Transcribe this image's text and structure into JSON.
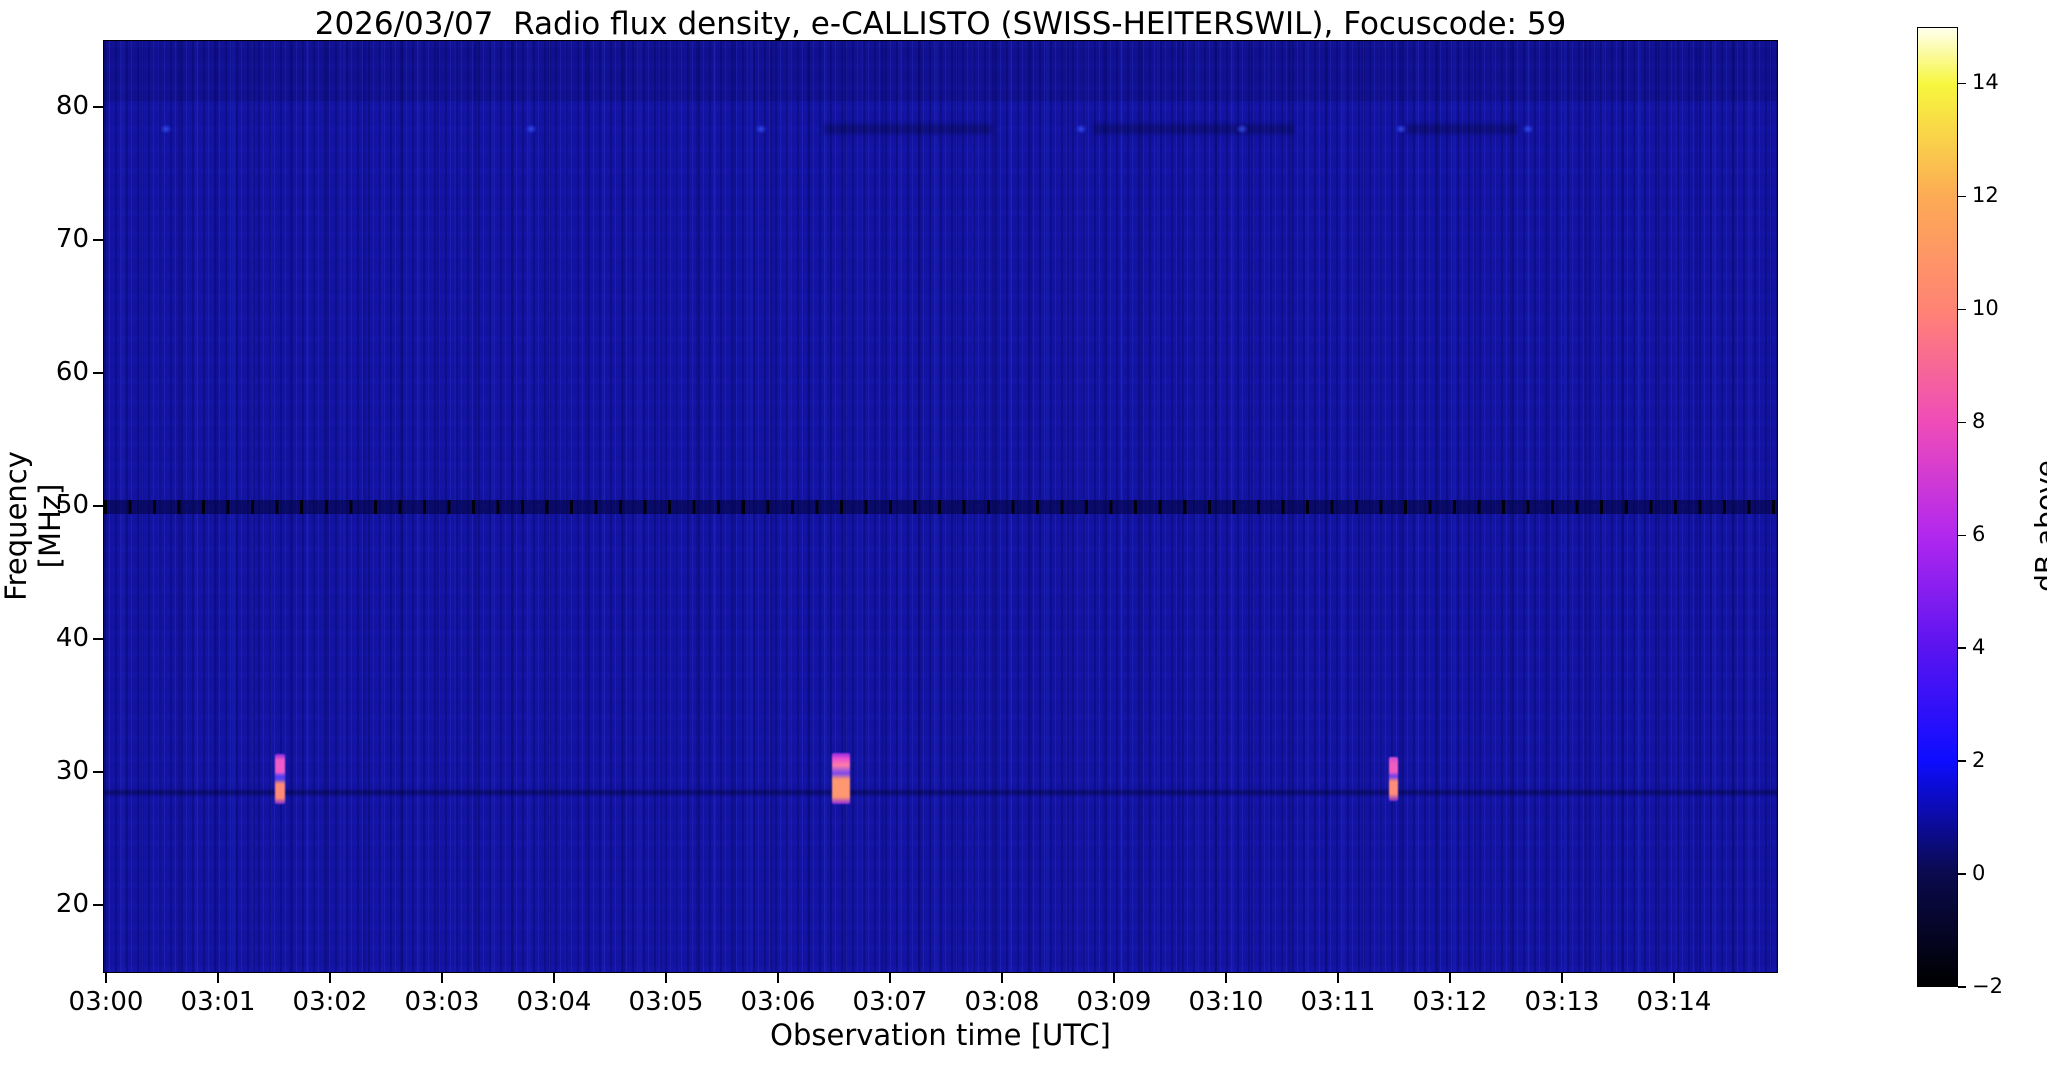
{
  "figure": {
    "title": "2026/03/07  Radio flux density, e-CALLISTO (SWISS-HEITERSWIL), Focuscode: 59",
    "xlabel": "Observation time [UTC]",
    "ylabel": "Frequency [MHz]",
    "colorbar_label": "dB above background"
  },
  "chart_data": {
    "type": "heatmap",
    "title": "2026/03/07  Radio flux density, e-CALLISTO (SWISS-HEITERSWIL), Focuscode: 59",
    "xlabel": "Observation time [UTC]",
    "ylabel": "Frequency [MHz]",
    "x_tick_labels": [
      "03:00",
      "03:01",
      "03:02",
      "03:03",
      "03:04",
      "03:05",
      "03:06",
      "03:07",
      "03:08",
      "03:09",
      "03:10",
      "03:11",
      "03:12",
      "03:13",
      "03:14"
    ],
    "x_range_utc": [
      "03:00",
      "03:15"
    ],
    "y_tick_labels": [
      "80",
      "70",
      "60",
      "50",
      "40",
      "30",
      "20"
    ],
    "y_ticks_mhz": [
      80,
      70,
      60,
      50,
      40,
      30,
      20
    ],
    "ylim_mhz": [
      15,
      85
    ],
    "y_axis_inverted": true,
    "grid": false,
    "background_db": 0.5,
    "background_color": "#1313a2",
    "colorbar": {
      "label": "dB above background",
      "tick_labels": [
        "14",
        "12",
        "10",
        "8",
        "6",
        "4",
        "2",
        "0",
        "−2"
      ],
      "tick_values": [
        14,
        12,
        10,
        8,
        6,
        4,
        2,
        0,
        -2
      ],
      "range_db": [
        -2,
        15
      ],
      "colormap": "gnuplot2-like (black-blue-violet-magenta-salmon-orange-yellow-white)",
      "stops": [
        {
          "v": -2,
          "c": "#000000"
        },
        {
          "v": 0,
          "c": "#0a0a4e"
        },
        {
          "v": 2,
          "c": "#0d0dff"
        },
        {
          "v": 4,
          "c": "#5a14f0"
        },
        {
          "v": 6,
          "c": "#b228ee"
        },
        {
          "v": 8,
          "c": "#ef4cb8"
        },
        {
          "v": 10,
          "c": "#ff8374"
        },
        {
          "v": 12,
          "c": "#fcab55"
        },
        {
          "v": 14,
          "c": "#f7f63e"
        },
        {
          "v": 15,
          "c": "#ffffee"
        }
      ]
    },
    "features": {
      "bursts": [
        {
          "t_start_min": 1.5,
          "t_end_min": 1.59,
          "t_center_utc": "03:01:33",
          "f_hi_mhz": 31.4,
          "f_lo_mhz": 27.7,
          "peak_db": 10,
          "stops": [
            [
              "#8a2ae0",
              0
            ],
            [
              "#f15cc8",
              12
            ],
            [
              "#f15cc8",
              36
            ],
            [
              "#5440f0",
              44
            ],
            [
              "#5440f0",
              50
            ],
            [
              "#ff8a78",
              60
            ],
            [
              "#ff8a78",
              88
            ],
            [
              "#7a2ad0",
              100
            ]
          ]
        },
        {
          "t_start_min": 6.47,
          "t_end_min": 6.63,
          "t_center_utc": "03:06:33",
          "f_hi_mhz": 31.5,
          "f_lo_mhz": 27.7,
          "peak_db": 11,
          "stops": [
            [
              "#8a2ae0",
              0
            ],
            [
              "#e84cd4",
              10
            ],
            [
              "#ff7ba6",
              24
            ],
            [
              "#7a48f0",
              40
            ],
            [
              "#ff9770",
              52
            ],
            [
              "#ff9770",
              86
            ],
            [
              "#8a2ae0",
              100
            ]
          ]
        },
        {
          "t_start_min": 11.45,
          "t_end_min": 11.53,
          "t_center_utc": "03:11:29",
          "f_hi_mhz": 31.2,
          "f_lo_mhz": 27.9,
          "peak_db": 10,
          "stops": [
            [
              "#c84ad8",
              0
            ],
            [
              "#f05cc0",
              14
            ],
            [
              "#f05cc0",
              34
            ],
            [
              "#6a3cf0",
              44
            ],
            [
              "#ff8d7a",
              56
            ],
            [
              "#ff8d7a",
              84
            ],
            [
              "#7a2ad0",
              100
            ]
          ]
        }
      ],
      "interference_50mhz": {
        "freq_hi_mhz": 50.55,
        "freq_lo_mhz": 49.5,
        "level_db": -1.5,
        "blanking_dash_period_min": 0.219,
        "dash_width_min": 0.027,
        "band_color": "rgba(2,2,55,0.55)",
        "dash_color": "rgba(0,0,0,0.88)"
      },
      "rfi_78mhz": {
        "freq_mhz": 78.4,
        "dot_times_min": [
          0.53,
          3.79,
          5.84,
          8.7,
          10.13,
          11.55,
          12.69
        ],
        "dot_color": "rgba(70,95,255,0.85)",
        "dark_streaks_min": [
          [
            6.4,
            7.9
          ],
          [
            8.8,
            10.6
          ],
          [
            11.6,
            12.6
          ]
        ],
        "streak_color": "rgba(0,0,18,0.28)"
      },
      "dark_band": {
        "freq_mhz": 28.6,
        "color": "rgba(0,0,28,0.35)"
      }
    }
  }
}
